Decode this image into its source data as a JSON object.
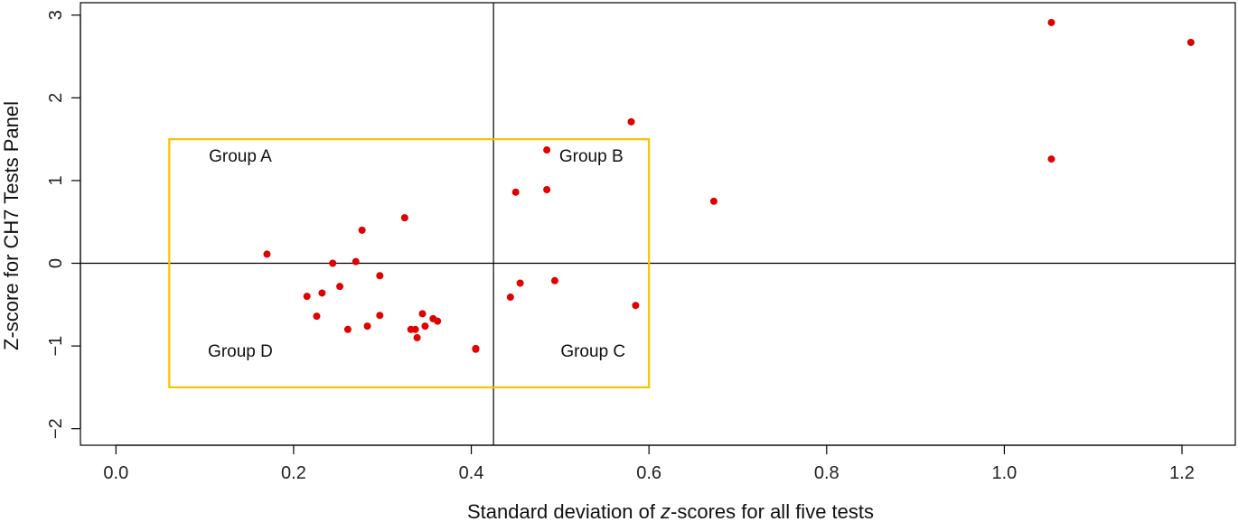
{
  "chart_data": {
    "type": "scatter",
    "title": "",
    "xlabel_parts": [
      {
        "text": "Standard deviation of ",
        "italic": false
      },
      {
        "text": "z",
        "italic": true
      },
      {
        "text": "-scores for all five tests",
        "italic": false
      }
    ],
    "ylabel": "Z-score for CH7 Tests Panel",
    "xlim": [
      -0.04,
      1.26
    ],
    "ylim": [
      -2.2,
      3.15
    ],
    "x_ticks": [
      0.0,
      0.2,
      0.4,
      0.6,
      0.8,
      1.0,
      1.2
    ],
    "x_tick_labels": [
      "0.0",
      "0.2",
      "0.4",
      "0.6",
      "0.8",
      "1.0",
      "1.2"
    ],
    "y_ticks": [
      -2,
      -1,
      0,
      1,
      2,
      3
    ],
    "y_tick_labels": [
      "−2",
      "−1",
      "0",
      "1",
      "2",
      "3"
    ],
    "point_color": "#e00000",
    "reference_lines": {
      "vertical_x": 0.425,
      "horizontal_y": 0
    },
    "highlight_box": {
      "x": [
        0.06,
        0.6
      ],
      "y": [
        -1.5,
        1.5
      ],
      "color": "#f5c400"
    },
    "groups": [
      {
        "label": "Group A",
        "x": 0.14,
        "y": 1.23
      },
      {
        "label": "Group B",
        "x": 0.535,
        "y": 1.23
      },
      {
        "label": "Group C",
        "x": 0.537,
        "y": -1.13
      },
      {
        "label": "Group D",
        "x": 0.14,
        "y": -1.13
      }
    ],
    "points": [
      {
        "x": 1.053,
        "y": 2.91
      },
      {
        "x": 1.21,
        "y": 2.67
      },
      {
        "x": 1.053,
        "y": 1.26
      },
      {
        "x": 0.58,
        "y": 1.71
      },
      {
        "x": 0.673,
        "y": 0.75
      },
      {
        "x": 0.485,
        "y": 1.37
      },
      {
        "x": 0.45,
        "y": 0.86
      },
      {
        "x": 0.485,
        "y": 0.89
      },
      {
        "x": 0.325,
        "y": 0.55
      },
      {
        "x": 0.277,
        "y": 0.4
      },
      {
        "x": 0.17,
        "y": 0.11
      },
      {
        "x": 0.244,
        "y": 0.0
      },
      {
        "x": 0.27,
        "y": 0.02
      },
      {
        "x": 0.297,
        "y": -0.15
      },
      {
        "x": 0.252,
        "y": -0.28
      },
      {
        "x": 0.232,
        "y": -0.36
      },
      {
        "x": 0.215,
        "y": -0.4
      },
      {
        "x": 0.226,
        "y": -0.64
      },
      {
        "x": 0.297,
        "y": -0.63
      },
      {
        "x": 0.261,
        "y": -0.8
      },
      {
        "x": 0.283,
        "y": -0.76
      },
      {
        "x": 0.345,
        "y": -0.61
      },
      {
        "x": 0.357,
        "y": -0.67
      },
      {
        "x": 0.362,
        "y": -0.7
      },
      {
        "x": 0.348,
        "y": -0.76
      },
      {
        "x": 0.332,
        "y": -0.8
      },
      {
        "x": 0.337,
        "y": -0.8
      },
      {
        "x": 0.339,
        "y": -0.9
      },
      {
        "x": 0.405,
        "y": -1.03
      },
      {
        "x": 0.405,
        "y": -1.04
      },
      {
        "x": 0.444,
        "y": -0.41
      },
      {
        "x": 0.455,
        "y": -0.24
      },
      {
        "x": 0.494,
        "y": -0.21
      },
      {
        "x": 0.585,
        "y": -0.51
      }
    ]
  }
}
